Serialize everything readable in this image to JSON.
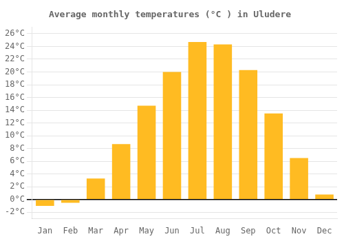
{
  "chart_data": {
    "type": "bar",
    "title": "Average monthly temperatures (°C ) in Uludere",
    "categories": [
      "Jan",
      "Feb",
      "Mar",
      "Apr",
      "May",
      "Jun",
      "Jul",
      "Aug",
      "Sep",
      "Oct",
      "Nov",
      "Dec"
    ],
    "values": [
      -1.0,
      -0.5,
      3.3,
      8.7,
      14.7,
      20.0,
      24.7,
      24.3,
      20.3,
      13.5,
      6.5,
      0.8
    ],
    "color": "#FFBB22",
    "ylim": [
      -3,
      27
    ],
    "yticks": [
      {
        "value": -2,
        "label": "-2°C"
      },
      {
        "value": 0,
        "label": "0°C"
      },
      {
        "value": 2,
        "label": "2°C"
      },
      {
        "value": 4,
        "label": "4°C"
      },
      {
        "value": 6,
        "label": "6°C"
      },
      {
        "value": 8,
        "label": "8°C"
      },
      {
        "value": 10,
        "label": "10°C"
      },
      {
        "value": 12,
        "label": "12°C"
      },
      {
        "value": 14,
        "label": "14°C"
      },
      {
        "value": 16,
        "label": "16°C"
      },
      {
        "value": 18,
        "label": "18°C"
      },
      {
        "value": 20,
        "label": "20°C"
      },
      {
        "value": 22,
        "label": "22°C"
      },
      {
        "value": 24,
        "label": "24°C"
      },
      {
        "value": 26,
        "label": "26°C"
      }
    ],
    "grid": true
  }
}
